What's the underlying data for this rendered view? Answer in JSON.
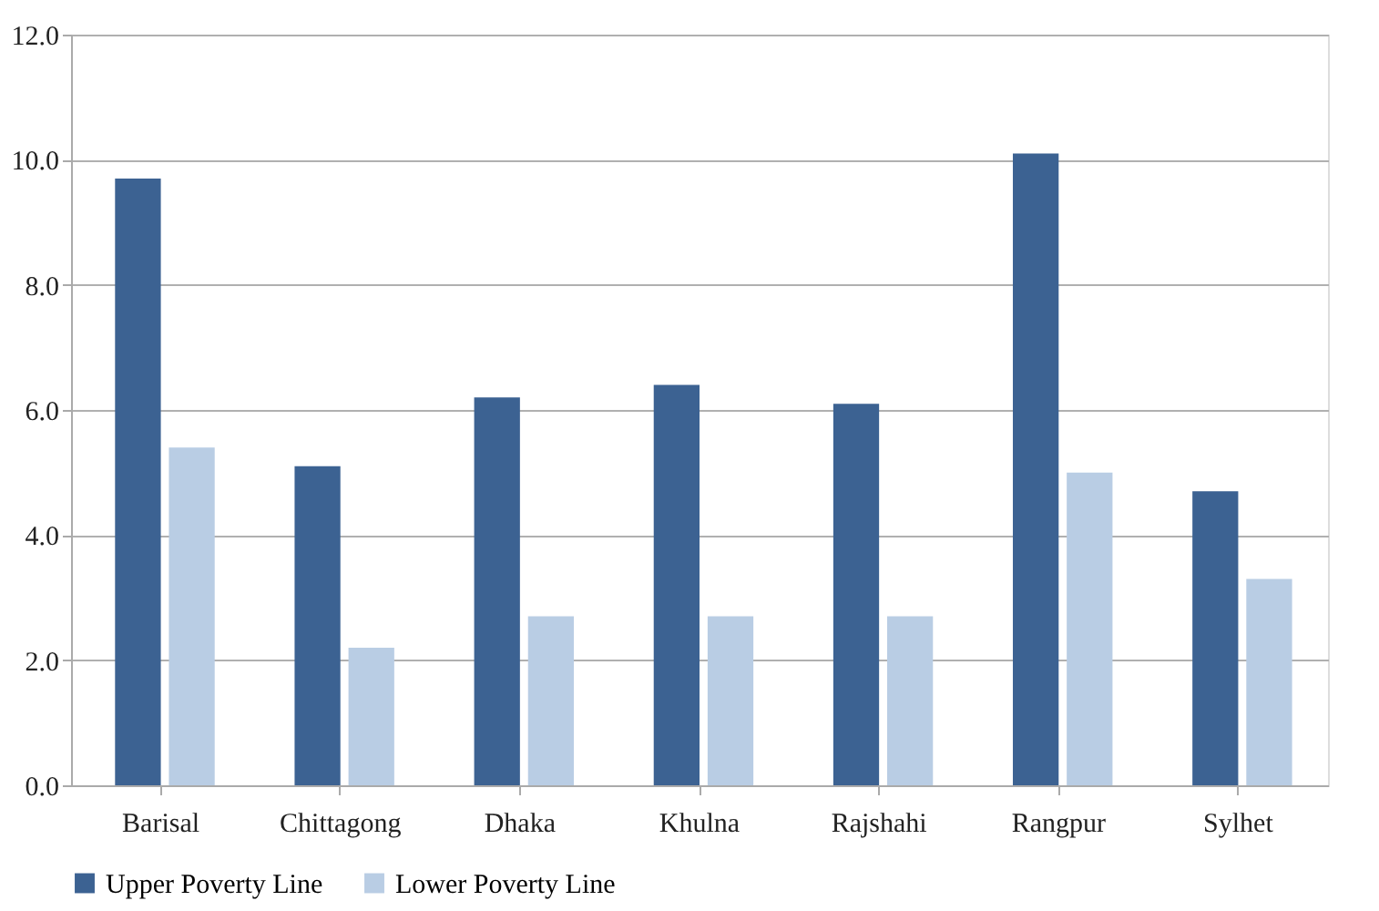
{
  "chart_data": {
    "type": "bar",
    "categories": [
      "Barisal",
      "Chittagong",
      "Dhaka",
      "Khulna",
      "Rajshahi",
      "Rangpur",
      "Sylhet"
    ],
    "series": [
      {
        "name": "Upper Poverty Line",
        "color": "#3c6292",
        "values": [
          9.7,
          5.1,
          6.2,
          6.4,
          6.1,
          10.1,
          4.7
        ]
      },
      {
        "name": "Lower Poverty Line",
        "color": "#b9cde4",
        "values": [
          5.4,
          2.2,
          2.7,
          2.7,
          2.7,
          5.0,
          3.3
        ]
      }
    ],
    "ylim": [
      0,
      12
    ],
    "yticks": [
      {
        "value": 0,
        "label": "0.0"
      },
      {
        "value": 2,
        "label": "2.0"
      },
      {
        "value": 4,
        "label": "4.0"
      },
      {
        "value": 6,
        "label": "6.0"
      },
      {
        "value": 8,
        "label": "8.0"
      },
      {
        "value": 10,
        "label": "10.0"
      },
      {
        "value": 12,
        "label": "12.0"
      }
    ],
    "grid": "y",
    "legend": "bottom"
  }
}
